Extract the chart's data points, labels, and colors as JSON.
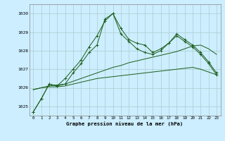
{
  "title": "Graphe pression niveau de la mer (hPa)",
  "background_color": "#cceeff",
  "grid_color": "#aacccc",
  "line_color": "#1a5c1a",
  "x_labels": [
    "0",
    "1",
    "2",
    "3",
    "4",
    "5",
    "6",
    "7",
    "8",
    "9",
    "10",
    "11",
    "12",
    "13",
    "14",
    "15",
    "16",
    "17",
    "18",
    "19",
    "20",
    "21",
    "22",
    "23"
  ],
  "ylim": [
    1024.5,
    1030.5
  ],
  "yticks": [
    1025,
    1026,
    1027,
    1028,
    1029,
    1030
  ],
  "series_marker": [
    [
      1024.7,
      1025.4,
      1026.2,
      1026.1,
      1026.5,
      1027.0,
      1027.5,
      1028.2,
      1028.8,
      1029.6,
      1030.0,
      1029.2,
      1028.6,
      1028.4,
      1028.3,
      1027.9,
      1028.1,
      1028.4,
      1028.9,
      1028.6,
      1028.3,
      1027.9,
      1027.4,
      1026.8
    ],
    [
      1024.7,
      1025.4,
      1026.2,
      1026.1,
      1026.2,
      1026.8,
      1027.3,
      1027.9,
      1028.3,
      1029.7,
      1030.0,
      1028.9,
      1028.5,
      1028.1,
      1027.9,
      1027.8,
      1028.0,
      1028.4,
      1028.8,
      1028.5,
      1028.2,
      1027.8,
      1027.3,
      1026.7
    ]
  ],
  "series_smooth": [
    [
      1025.9,
      1026.0,
      1026.1,
      1026.15,
      1026.2,
      1026.35,
      1026.5,
      1026.65,
      1026.8,
      1026.95,
      1027.1,
      1027.2,
      1027.35,
      1027.45,
      1027.55,
      1027.65,
      1027.75,
      1027.85,
      1027.95,
      1028.1,
      1028.25,
      1028.3,
      1028.1,
      1027.8
    ],
    [
      1025.9,
      1026.0,
      1026.05,
      1026.05,
      1026.1,
      1026.2,
      1026.3,
      1026.4,
      1026.5,
      1026.55,
      1026.6,
      1026.65,
      1026.7,
      1026.75,
      1026.8,
      1026.85,
      1026.9,
      1026.95,
      1027.0,
      1027.05,
      1027.1,
      1027.0,
      1026.85,
      1026.7
    ]
  ]
}
